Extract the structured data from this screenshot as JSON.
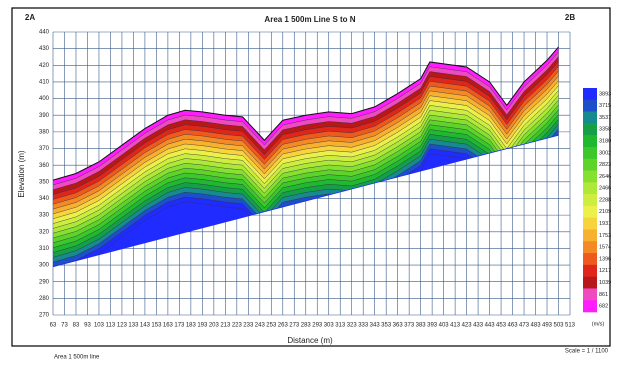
{
  "chart_data": {
    "type": "section",
    "title": "Area 1 500m Line S to N",
    "left_label": "2A",
    "right_label": "2B",
    "x_label": "Distance (m)",
    "y_label": "Elevation (m)",
    "footnote": "Area 1 500m line",
    "scale_note": "Scale = 1 / 1100",
    "xlim": [
      63,
      513
    ],
    "ylim": [
      270,
      440
    ],
    "xticks": [
      63,
      73,
      83,
      93,
      103,
      113,
      123,
      133,
      143,
      153,
      163,
      173,
      183,
      193,
      203,
      213,
      223,
      233,
      243,
      253,
      263,
      273,
      283,
      293,
      303,
      313,
      323,
      333,
      343,
      353,
      363,
      373,
      383,
      393,
      403,
      413,
      423,
      433,
      443,
      453,
      463,
      473,
      483,
      493,
      503,
      513
    ],
    "yticks": [
      270,
      280,
      290,
      300,
      310,
      320,
      330,
      340,
      350,
      360,
      370,
      380,
      390,
      400,
      410,
      420,
      430,
      440
    ],
    "grid": true,
    "surface": {
      "distance": [
        63,
        83,
        103,
        123,
        143,
        163,
        178,
        193,
        213,
        228,
        247,
        263,
        283,
        303,
        323,
        343,
        363,
        383,
        391,
        423,
        443,
        458,
        473,
        493,
        503
      ],
      "elevation": [
        351,
        355,
        362,
        372,
        382,
        390,
        393,
        392,
        390,
        389,
        375,
        387,
        390,
        392,
        391,
        395,
        403,
        412,
        422,
        419,
        410,
        396,
        410,
        423,
        431
      ]
    },
    "base": {
      "distance": [
        63,
        503
      ],
      "elevation": [
        299,
        378
      ]
    },
    "colorbar": {
      "unit": "(m/s)",
      "values": [
        3893,
        3715,
        3537,
        3358,
        3180,
        3002,
        2823,
        2646,
        2466,
        2288,
        2109,
        1931,
        1753,
        1574,
        1396,
        1217,
        1039,
        861,
        682
      ],
      "colors": [
        "#1f2bff",
        "#1c4fc8",
        "#168a8e",
        "#15a048",
        "#1fb830",
        "#3cc82a",
        "#5ed42a",
        "#86e030",
        "#aee838",
        "#cdee3e",
        "#ecf04a",
        "#f7d43c",
        "#f8b030",
        "#f48a26",
        "#ee5a1e",
        "#e0261a",
        "#b81818",
        "#f04ac0",
        "#ff1cff"
      ]
    }
  }
}
